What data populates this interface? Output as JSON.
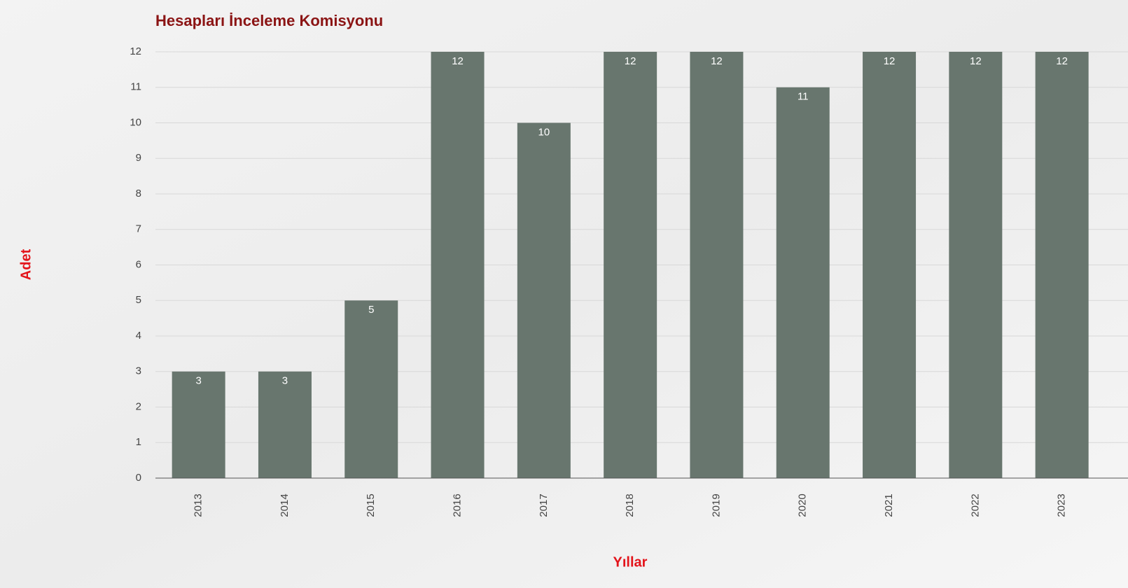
{
  "chart_data": {
    "type": "bar",
    "title": "Hesapları İnceleme Komisyonu",
    "x_label": "Yıllar",
    "y_label": "Adet",
    "categories": [
      "2013",
      "2014",
      "2015",
      "2016",
      "2017",
      "2018",
      "2019",
      "2020",
      "2021",
      "2022",
      "2023"
    ],
    "values": [
      3,
      3,
      5,
      12,
      10,
      12,
      12,
      11,
      12,
      12,
      12
    ],
    "color": "#68766e",
    "ylim": [
      0,
      12
    ],
    "yticks": [
      0,
      1,
      2,
      3,
      4,
      5,
      6,
      7,
      8,
      9,
      10,
      11,
      12
    ],
    "grid": true
  }
}
